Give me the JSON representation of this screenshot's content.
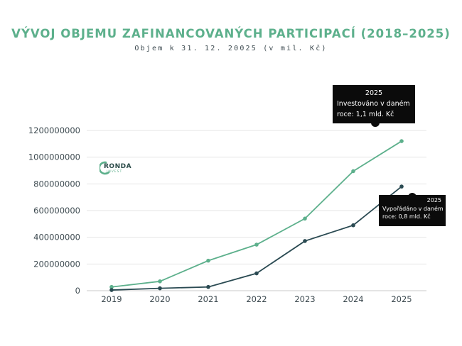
{
  "chart_data": {
    "type": "line",
    "title": "VÝVOJ OBJEMU ZAFINANCOVANÝCH PARTICIPACÍ (2018–2025)",
    "subtitle": "Objem k 31. 12. 20025 (v mil. Kč)",
    "categories": [
      "2019",
      "2020",
      "2021",
      "2022",
      "2023",
      "2024",
      "2025"
    ],
    "series": [
      {
        "values": [
          28000000,
          70000000,
          225000000,
          345000000,
          540000000,
          895000000,
          1120000000
        ],
        "color": "#5db08c"
      },
      {
        "values": [
          5000000,
          18000000,
          28000000,
          130000000,
          372000000,
          490000000,
          780000000
        ],
        "color": "#2a4a52"
      }
    ],
    "y_ticks": [
      "0",
      "200000000",
      "400000000",
      "600000000",
      "800000000",
      "1000000000",
      "1200000000"
    ],
    "ylim": [
      0,
      1200000000
    ],
    "grid": true,
    "tooltips": [
      {
        "head": "2025",
        "line1": "Investováno v daném",
        "line2": "roce: 1,1 mld. Kč"
      },
      {
        "head": "2025",
        "line1": "Vypořádáno v daném",
        "line2": "roce: 0,8 mld. Kč"
      }
    ]
  },
  "logo": {
    "word": "RONDA",
    "sub": "INVEST"
  },
  "colors": {
    "accent": "#5db08c",
    "dark": "#2a4a52",
    "text": "#3d4a50",
    "grid": "#e4e4e4",
    "tooltip_bg": "#0b0b0b"
  }
}
